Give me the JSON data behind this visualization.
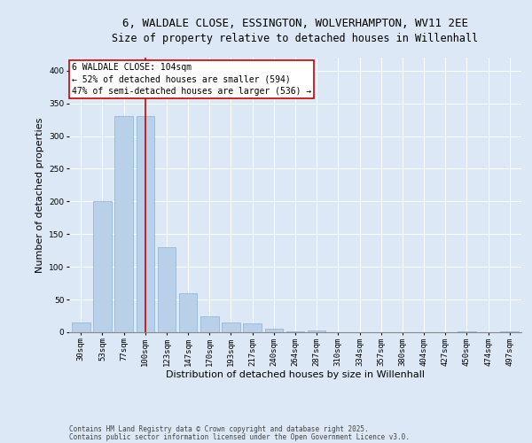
{
  "title_line1": "6, WALDALE CLOSE, ESSINGTON, WOLVERHAMPTON, WV11 2EE",
  "title_line2": "Size of property relative to detached houses in Willenhall",
  "xlabel": "Distribution of detached houses by size in Willenhall",
  "ylabel": "Number of detached properties",
  "bar_color": "#b8d0e8",
  "bar_edge_color": "#8ab0d0",
  "vline_color": "#cc0000",
  "vline_x_index": 3,
  "categories": [
    "30sqm",
    "53sqm",
    "77sqm",
    "100sqm",
    "123sqm",
    "147sqm",
    "170sqm",
    "193sqm",
    "217sqm",
    "240sqm",
    "264sqm",
    "287sqm",
    "310sqm",
    "334sqm",
    "357sqm",
    "380sqm",
    "404sqm",
    "427sqm",
    "450sqm",
    "474sqm",
    "497sqm"
  ],
  "values": [
    15,
    200,
    330,
    330,
    130,
    60,
    25,
    15,
    13,
    6,
    2,
    3,
    0,
    0,
    0,
    0,
    0,
    0,
    2,
    0,
    2
  ],
  "ylim": [
    0,
    420
  ],
  "yticks": [
    0,
    50,
    100,
    150,
    200,
    250,
    300,
    350,
    400
  ],
  "annotation_text": "6 WALDALE CLOSE: 104sqm\n← 52% of detached houses are smaller (594)\n47% of semi-detached houses are larger (536) →",
  "annotation_box_color": "#ffffff",
  "annotation_box_edge": "#cc0000",
  "background_color": "#dce8f5",
  "plot_bg_color": "#dce8f5",
  "footer_line1": "Contains HM Land Registry data © Crown copyright and database right 2025.",
  "footer_line2": "Contains public sector information licensed under the Open Government Licence v3.0.",
  "title_fontsize": 9,
  "subtitle_fontsize": 8.5,
  "tick_fontsize": 6.5,
  "label_fontsize": 8,
  "annotation_fontsize": 7,
  "footer_fontsize": 5.5
}
